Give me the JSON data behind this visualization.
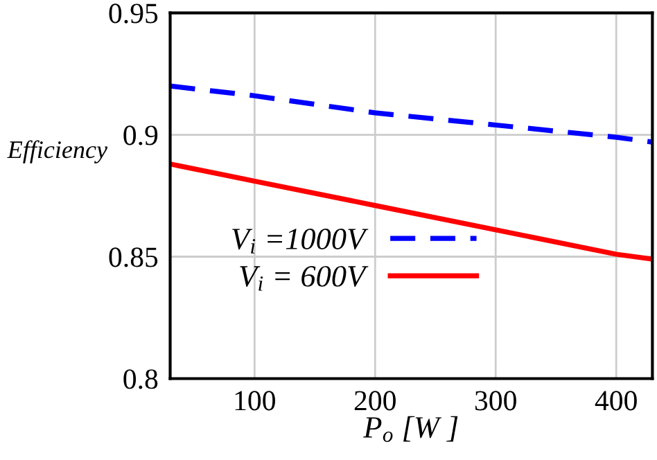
{
  "chart_data": {
    "type": "line",
    "xlabel": "P$_{o}$ [W ]",
    "ylabel": "Efficiency",
    "series": [
      {
        "name": "V$_{i}$ =1000V",
        "color": "#0000ff",
        "line_style": "dashed",
        "x": [
          30,
          100,
          200,
          300,
          400,
          430
        ],
        "values": [
          0.92,
          0.916,
          0.909,
          0.904,
          0.899,
          0.897
        ]
      },
      {
        "name": "V$_{i}$ = 600V",
        "color": "#ff0000",
        "line_style": "solid",
        "x": [
          30,
          100,
          200,
          300,
          400,
          430
        ],
        "values": [
          0.888,
          0.881,
          0.871,
          0.861,
          0.851,
          0.849
        ]
      }
    ],
    "xlim": [
      30,
      430
    ],
    "xticks": [
      100,
      200,
      300,
      400
    ],
    "ylim": [
      0.8,
      0.95
    ],
    "yticks": [
      0.8,
      0.85,
      0.9,
      0.95
    ],
    "grid": true,
    "legend": "lower left",
    "marker": "none"
  }
}
